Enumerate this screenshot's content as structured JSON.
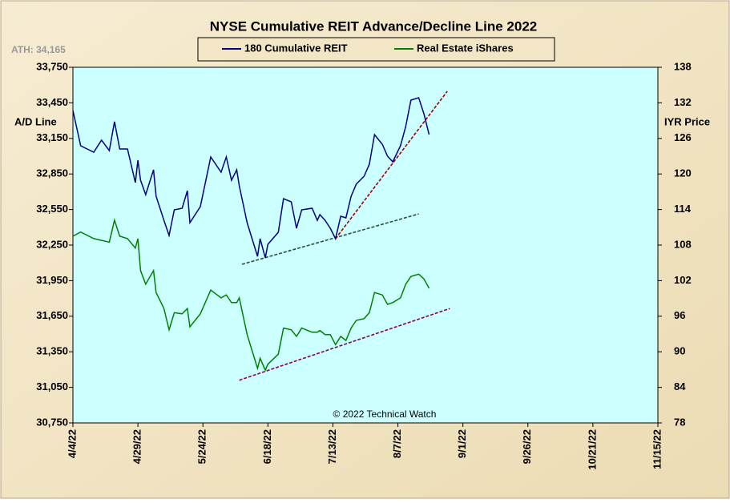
{
  "chart_data": {
    "type": "line",
    "title": "NYSE Cumulative  REIT Advance/Decline Line 2022",
    "annotation": "ATH: 34,165",
    "ylabel": "A/D Line",
    "y2label": "IYR Price",
    "credit": "© 2022 Technical Watch",
    "background": "#ccffff",
    "x": [
      "4/4/22",
      "4/7/22",
      "4/12/22",
      "4/15/22",
      "4/18/22",
      "4/20/22",
      "4/22/22",
      "4/25/22",
      "4/28/22",
      "4/29/22",
      "4/30/22",
      "5/2/22",
      "5/5/22",
      "5/6/22",
      "5/9/22",
      "5/11/22",
      "5/13/22",
      "5/16/22",
      "5/18/22",
      "5/19/22",
      "5/23/22",
      "5/27/22",
      "5/31/22",
      "6/2/22",
      "6/4/22",
      "6/6/22",
      "6/7/22",
      "6/10/22",
      "6/14/22",
      "6/15/22",
      "6/17/22",
      "6/18/22",
      "6/22/22",
      "6/24/22",
      "6/27/22",
      "6/29/22",
      "7/1/22",
      "7/5/22",
      "7/7/22",
      "7/8/22",
      "7/10/22",
      "7/12/22",
      "7/14/22",
      "7/16/22",
      "7/18/22",
      "7/20/22",
      "7/22/22",
      "7/25/22",
      "7/27/22",
      "7/29/22",
      "8/1/22",
      "8/3/22",
      "8/5/22",
      "8/8/22",
      "8/10/22",
      "8/12/22",
      "8/15/22",
      "8/17/22",
      "8/19/22"
    ],
    "series": [
      {
        "name": "180 Cumulative REIT",
        "color": "#000080",
        "axis": "y",
        "values": [
          33385,
          33088,
          33034,
          33135,
          33047,
          33291,
          33061,
          33061,
          32777,
          32966,
          32797,
          32676,
          32885,
          32662,
          32459,
          32331,
          32547,
          32561,
          32709,
          32439,
          32574,
          32993,
          32865,
          32993,
          32797,
          32885,
          32750,
          32439,
          32155,
          32304,
          32142,
          32257,
          32358,
          32642,
          32615,
          32392,
          32547,
          32561,
          32459,
          32507,
          32459,
          32392,
          32304,
          32493,
          32480,
          32662,
          32764,
          32831,
          32932,
          33182,
          33101,
          33000,
          32953,
          33088,
          33250,
          33473,
          33493,
          33358,
          33182
        ]
      },
      {
        "name": "Real Estate iShares",
        "color": "#008000",
        "axis": "y2",
        "values": [
          109.5,
          110.2,
          109.1,
          108.8,
          108.5,
          112.2,
          109.5,
          109.1,
          107.5,
          109.1,
          103.7,
          101.4,
          103.7,
          100.0,
          97.3,
          93.7,
          96.6,
          96.4,
          97.3,
          94.2,
          96.4,
          100.4,
          99.1,
          99.6,
          98.3,
          98.3,
          99.1,
          92.9,
          87.2,
          88.9,
          86.9,
          87.9,
          89.6,
          94.0,
          93.7,
          92.6,
          94.0,
          93.3,
          93.3,
          93.6,
          92.9,
          92.9,
          91.2,
          92.6,
          91.9,
          94.0,
          95.3,
          95.6,
          96.6,
          100.0,
          99.6,
          98.0,
          98.3,
          99.1,
          101.4,
          102.7,
          103.1,
          102.3,
          100.7
        ]
      }
    ],
    "trendlines": [
      {
        "axis": "y",
        "color": "#2f4f2f",
        "x": [
          "6/8/22",
          "8/15/22"
        ],
        "values": [
          32088,
          32513
        ]
      },
      {
        "axis": "y",
        "color": "#a00000",
        "x": [
          "7/14/22",
          "8/26/22"
        ],
        "values": [
          32304,
          33547
        ]
      },
      {
        "axis": "y2",
        "color": "#800060",
        "x": [
          "6/7/22",
          "8/27/22"
        ],
        "values": [
          85.2,
          97.3
        ]
      }
    ],
    "xlim": [
      "4/4/22",
      "11/15/22"
    ],
    "xticks": [
      "4/4/22",
      "4/29/22",
      "5/24/22",
      "6/18/22",
      "7/13/22",
      "8/7/22",
      "9/1/22",
      "9/26/22",
      "10/21/22",
      "11/15/22"
    ],
    "ylim": [
      30750,
      33750
    ],
    "yticks": [
      {
        "value": 30750,
        "label": "30,750"
      },
      {
        "value": 31050,
        "label": "31,050"
      },
      {
        "value": 31350,
        "label": "31,350"
      },
      {
        "value": 31650,
        "label": "31,650"
      },
      {
        "value": 31950,
        "label": "31,950"
      },
      {
        "value": 32250,
        "label": "32,250"
      },
      {
        "value": 32550,
        "label": "32,550"
      },
      {
        "value": 32850,
        "label": "32,850"
      },
      {
        "value": 33150,
        "label": "33,150"
      },
      {
        "value": 33450,
        "label": "33,450"
      },
      {
        "value": 33750,
        "label": "33,750"
      }
    ],
    "y2lim": [
      78,
      138
    ],
    "y2ticks": [
      78,
      84,
      90,
      96,
      102,
      108,
      114,
      120,
      126,
      132,
      138
    ]
  }
}
